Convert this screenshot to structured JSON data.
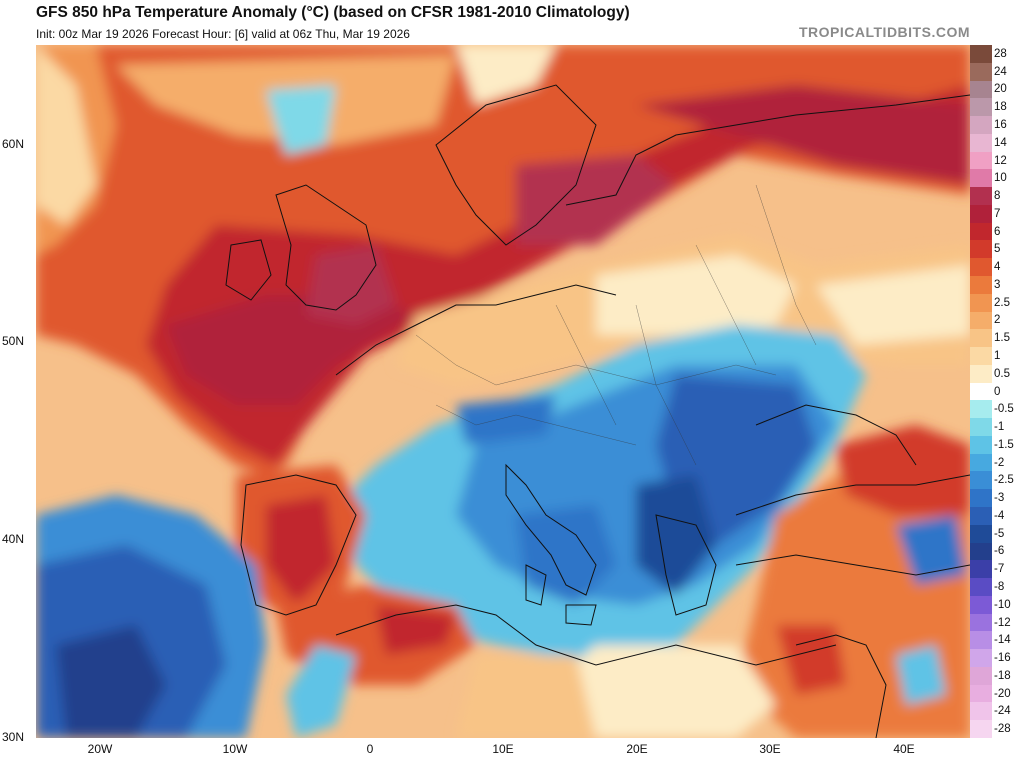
{
  "header": {
    "title": "GFS 850 hPa Temperature Anomaly (°C) (based on CFSR 1981-2010 Climatology)",
    "subtitle": "Init: 00z Mar 19 2026   Forecast Hour: [6]   valid at 06z Thu, Mar 19 2026",
    "watermark": "TROPICALTIDBITS.COM"
  },
  "map": {
    "lat_labels": [
      "60N",
      "50N",
      "40N",
      "30N"
    ],
    "lon_labels": [
      "20W",
      "10W",
      "0",
      "10E",
      "20E",
      "30E",
      "40E"
    ]
  },
  "colorbar": {
    "levels": [
      {
        "label": "28",
        "color": "#7a4a3a"
      },
      {
        "label": "24",
        "color": "#9a6a5c"
      },
      {
        "label": "20",
        "color": "#a78490"
      },
      {
        "label": "18",
        "color": "#bb98aa"
      },
      {
        "label": "16",
        "color": "#d4a6c0"
      },
      {
        "label": "14",
        "color": "#e8b6d2"
      },
      {
        "label": "12",
        "color": "#f0a0c4"
      },
      {
        "label": "10",
        "color": "#e07aa8"
      },
      {
        "label": "8",
        "color": "#b2304f"
      },
      {
        "label": "7",
        "color": "#b0213a"
      },
      {
        "label": "6",
        "color": "#c1272d"
      },
      {
        "label": "5",
        "color": "#d23a2b"
      },
      {
        "label": "4",
        "color": "#e0582f"
      },
      {
        "label": "3",
        "color": "#eb7a3c"
      },
      {
        "label": "2.5",
        "color": "#f19551"
      },
      {
        "label": "2",
        "color": "#f5ad6a"
      },
      {
        "label": "1.5",
        "color": "#f8c486"
      },
      {
        "label": "1",
        "color": "#fbd9a4"
      },
      {
        "label": "0.5",
        "color": "#fdecc6"
      },
      {
        "label": "0",
        "color": "#ffffff"
      },
      {
        "label": "-0.5",
        "color": "#a6ecee"
      },
      {
        "label": "-1",
        "color": "#7fd9e8"
      },
      {
        "label": "-1.5",
        "color": "#5ec3e6"
      },
      {
        "label": "-2",
        "color": "#47a9e0"
      },
      {
        "label": "-2.5",
        "color": "#3a8ed6"
      },
      {
        "label": "-3",
        "color": "#2f74c8"
      },
      {
        "label": "-4",
        "color": "#2b5fb5"
      },
      {
        "label": "-5",
        "color": "#1f4b98"
      },
      {
        "label": "-6",
        "color": "#233f8c"
      },
      {
        "label": "-7",
        "color": "#3b3fa8"
      },
      {
        "label": "-8",
        "color": "#5a4cc4"
      },
      {
        "label": "-10",
        "color": "#7c5ad6"
      },
      {
        "label": "-12",
        "color": "#9a72df"
      },
      {
        "label": "-14",
        "color": "#b88ee6"
      },
      {
        "label": "-16",
        "color": "#d0a6ea"
      },
      {
        "label": "-18",
        "color": "#dfa6d8"
      },
      {
        "label": "-20",
        "color": "#e8aee0"
      },
      {
        "label": "-24",
        "color": "#f0c4ea"
      },
      {
        "label": "-28",
        "color": "#f6d6f0"
      }
    ]
  }
}
